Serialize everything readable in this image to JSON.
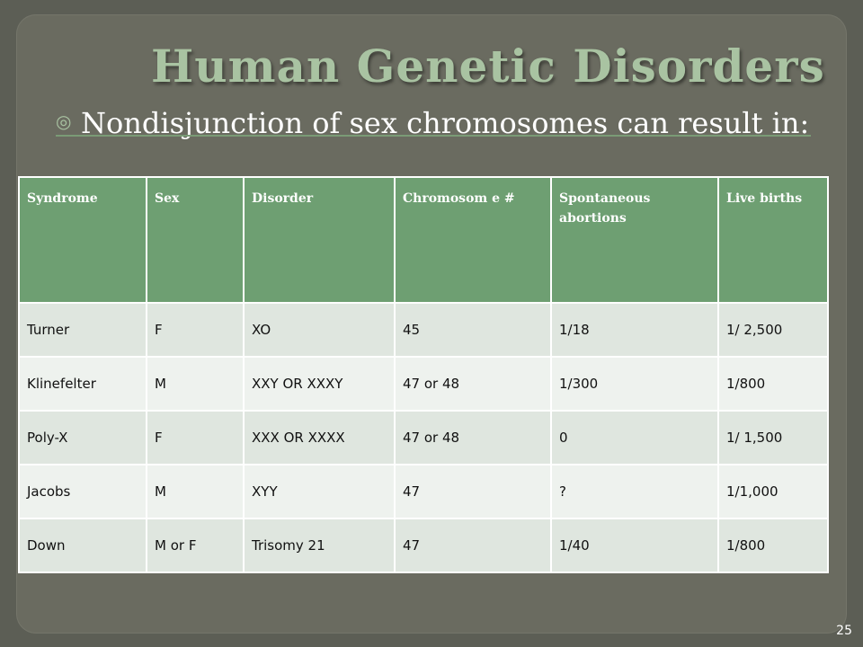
{
  "slide": {
    "title": "Human Genetic Disorders",
    "bullet_icon": "target-bullet-icon",
    "bullet_text": "Nondisjunction of sex chromosomes can result in:",
    "page_number": "25"
  },
  "table": {
    "headers": [
      "Syndrome",
      "Sex",
      "Disorder",
      "Chromosom e #",
      "Spontaneous abortions",
      "Live births"
    ],
    "rows": [
      [
        "Turner",
        "F",
        "XO",
        "45",
        "1/18",
        "1/ 2,500"
      ],
      [
        "Klinefelter",
        "M",
        "XXY OR XXXY",
        "47 or 48",
        "1/300",
        "1/800"
      ],
      [
        "Poly-X",
        "F",
        "XXX OR XXXX",
        "47 or 48",
        "0",
        "1/ 1,500"
      ],
      [
        "Jacobs",
        "M",
        "XYY",
        "47",
        "?",
        "1/1,000"
      ],
      [
        "Down",
        "M or F",
        "Trisomy 21",
        "47",
        "1/40",
        "1/800"
      ]
    ]
  },
  "colors": {
    "background": "#5c5e55",
    "title": "#a9c3a2",
    "header_fill": "#6e9f72",
    "cell_fill": "#dfe6df"
  }
}
